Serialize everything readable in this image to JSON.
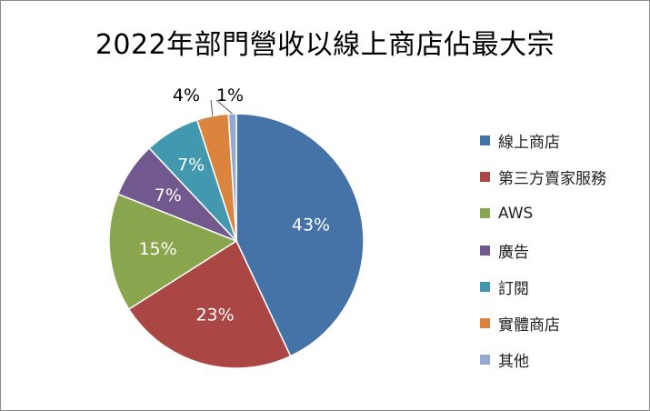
{
  "chart_data": {
    "type": "pie",
    "title": "2022年部門營收以線上商店佔最大宗",
    "categories": [
      "線上商店",
      "第三方賣家服務",
      "AWS",
      "廣告",
      "訂閱",
      "實體商店",
      "其他"
    ],
    "values": [
      43,
      23,
      15,
      7,
      7,
      4,
      1
    ],
    "labels": [
      "43%",
      "23%",
      "15%",
      "7%",
      "7%",
      "4%",
      "1%"
    ],
    "colors": [
      "#4572A7",
      "#AA4643",
      "#89A54E",
      "#71588F",
      "#4198AF",
      "#DB843D",
      "#93A9CF"
    ],
    "label_colors": [
      "#ffffff",
      "#ffffff",
      "#ffffff",
      "#ffffff",
      "#ffffff",
      "#000000",
      "#000000"
    ],
    "legend_position": "right",
    "start_angle": "12 o'clock, clockwise"
  }
}
